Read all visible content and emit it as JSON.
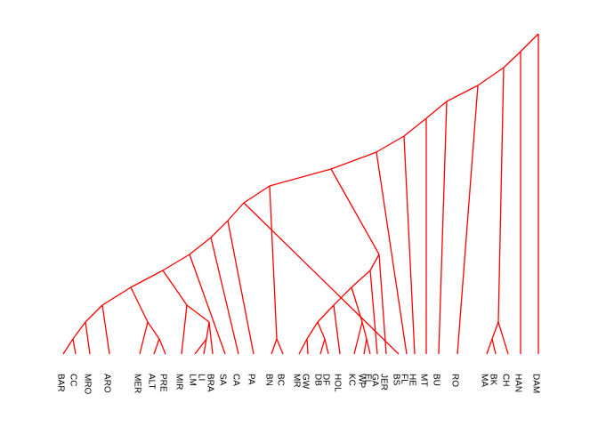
{
  "colors": {
    "branch": "#ff0000",
    "label": "#000000",
    "background": "#ffffff"
  },
  "tree": {
    "leaves": [
      "BAR",
      "CC",
      "MRO",
      "ARO",
      "MER",
      "ALT",
      "PRE",
      "MIR",
      "LM",
      "LI",
      "BRA",
      "SA",
      "CA",
      "PA",
      "BN",
      "BC",
      "MR",
      "GW",
      "DB",
      "DF",
      "HOL",
      "KC",
      "WP",
      "EL",
      "GA",
      "JER",
      "BS",
      "FL",
      "HE",
      "MT",
      "BU",
      "RO",
      "MA",
      "BK",
      "CH",
      "HAN",
      "DAM"
    ]
  }
}
